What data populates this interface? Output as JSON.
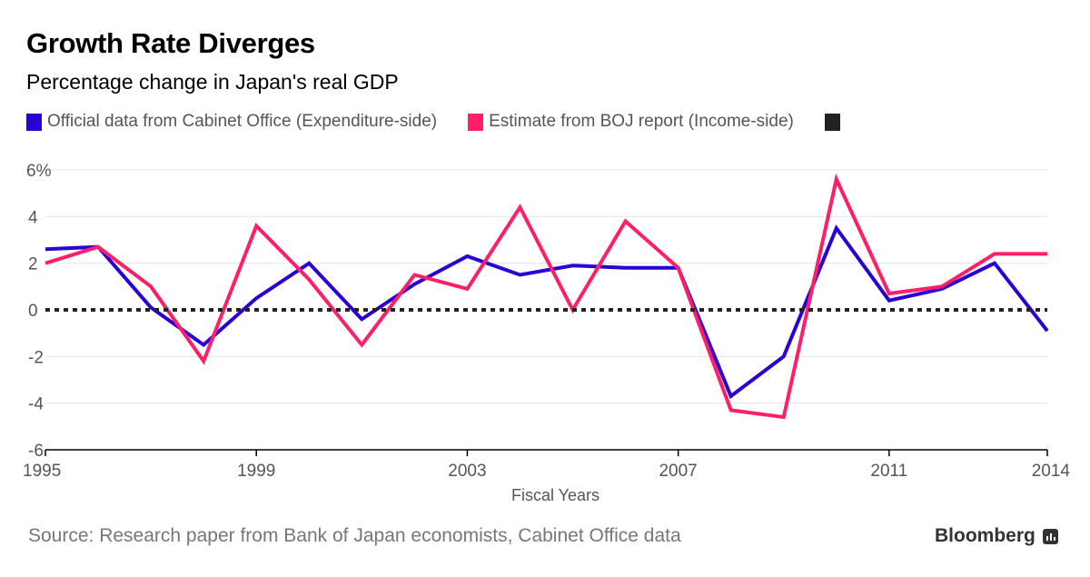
{
  "header": {
    "title": "Growth Rate Diverges",
    "subtitle": "Percentage change in Japan's real GDP"
  },
  "legend": [
    {
      "label": "Official data from Cabinet Office (Expenditure-side)",
      "color": "#2a00d4"
    },
    {
      "label": "Estimate from BOJ report (Income-side)",
      "color": "#ff1f66"
    },
    {
      "label": "",
      "color": "#222222"
    }
  ],
  "footer": {
    "source": "Source: Research paper from Bank of Japan economists, Cabinet Office data",
    "brand": "Bloomberg"
  },
  "chart_data": {
    "type": "line",
    "title": "Growth Rate Diverges",
    "subtitle": "Percentage change in Japan's real GDP",
    "xlabel": "Fiscal Years",
    "ylabel": "",
    "x": [
      1995,
      1996,
      1997,
      1998,
      1999,
      2000,
      2001,
      2002,
      2003,
      2004,
      2005,
      2006,
      2007,
      2008,
      2009,
      2010,
      2011,
      2012,
      2013,
      2014
    ],
    "xlim": [
      1995,
      2014
    ],
    "ylim": [
      -6,
      6
    ],
    "x_ticks": [
      1995,
      1999,
      2003,
      2007,
      2011,
      2014
    ],
    "y_ticks": [
      6,
      4,
      2,
      0,
      -2,
      -4,
      -6
    ],
    "y_tick_labels": [
      "6%",
      "4",
      "2",
      "0",
      "-2",
      "-4",
      "-6"
    ],
    "grid": true,
    "legend_position": "top-left",
    "reference_line": {
      "y": 0,
      "style": "dotted",
      "color": "#222222"
    },
    "series": [
      {
        "name": "Official data from Cabinet Office (Expenditure-side)",
        "color": "#2a00d4",
        "values": [
          2.6,
          2.7,
          0.1,
          -1.5,
          0.5,
          2.0,
          -0.4,
          1.1,
          2.3,
          1.5,
          1.9,
          1.8,
          1.8,
          -3.7,
          -2.0,
          3.5,
          0.4,
          0.9,
          2.0,
          -0.9
        ]
      },
      {
        "name": "Estimate from BOJ report (Income-side)",
        "color": "#ff1f66",
        "values": [
          2.0,
          2.7,
          1.0,
          -2.2,
          3.6,
          1.3,
          -1.5,
          1.5,
          0.9,
          4.4,
          0.0,
          3.8,
          1.8,
          -4.3,
          -4.6,
          5.6,
          0.7,
          1.0,
          2.4,
          2.4
        ]
      }
    ]
  }
}
